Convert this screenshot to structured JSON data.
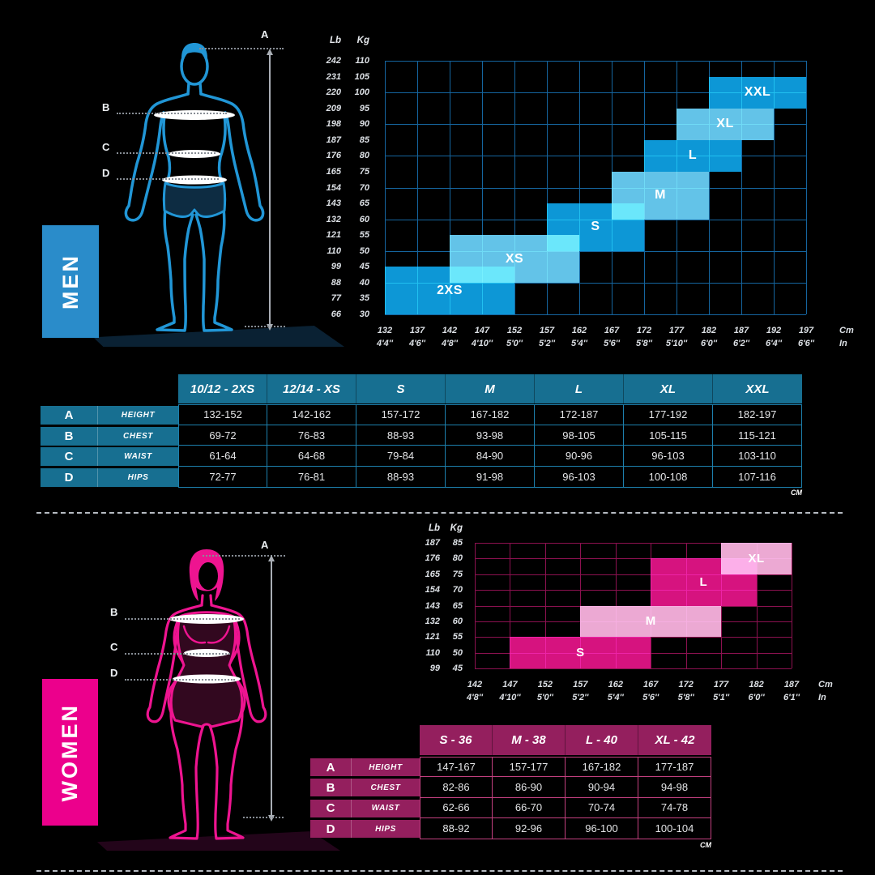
{
  "page": {
    "background": "#000000"
  },
  "men": {
    "banner_label": "MEN",
    "banner_color": "#2a8cca",
    "figure_color": "#2196d6",
    "figure_markers": [
      "A",
      "B",
      "C",
      "D"
    ],
    "table": {
      "columns": [
        "10/12 - 2XS",
        "12/14 - XS",
        "S",
        "M",
        "L",
        "XL",
        "XXL"
      ],
      "rows": [
        {
          "letter": "A",
          "label": "HEIGHT",
          "values": [
            "132-152",
            "142-162",
            "157-172",
            "167-182",
            "172-187",
            "177-192",
            "182-197"
          ]
        },
        {
          "letter": "B",
          "label": "CHEST",
          "values": [
            "69-72",
            "76-83",
            "88-93",
            "93-98",
            "98-105",
            "105-115",
            "115-121"
          ]
        },
        {
          "letter": "C",
          "label": "WAIST",
          "values": [
            "61-64",
            "64-68",
            "79-84",
            "84-90",
            "90-96",
            "96-103",
            "103-110"
          ]
        },
        {
          "letter": "D",
          "label": "HIPS",
          "values": [
            "72-77",
            "76-81",
            "88-93",
            "91-98",
            "96-103",
            "100-108",
            "107-116"
          ]
        }
      ],
      "unit_note": "CM",
      "header_color": "#176f91",
      "line_color": "#1d80ad"
    }
  },
  "women": {
    "banner_label": "WOMEN",
    "banner_color": "#ec008c",
    "figure_color": "#ee1490",
    "figure_markers": [
      "A",
      "B",
      "C",
      "D"
    ],
    "table": {
      "columns": [
        "S - 36",
        "M - 38",
        "L - 40",
        "XL - 42"
      ],
      "rows": [
        {
          "letter": "A",
          "label": "HEIGHT",
          "values": [
            "147-167",
            "157-177",
            "167-182",
            "177-187"
          ]
        },
        {
          "letter": "B",
          "label": "CHEST",
          "values": [
            "82-86",
            "86-90",
            "90-94",
            "94-98"
          ]
        },
        {
          "letter": "C",
          "label": "WAIST",
          "values": [
            "62-66",
            "66-70",
            "70-74",
            "74-78"
          ]
        },
        {
          "letter": "D",
          "label": "HIPS",
          "values": [
            "88-92",
            "92-96",
            "96-100",
            "100-104"
          ]
        }
      ],
      "unit_note": "CM",
      "header_color": "#941f5e",
      "line_color": "#c2407f"
    }
  },
  "chart_data": [
    {
      "id": "men_size_zones",
      "type": "heatmap",
      "title": "Men size zones by height and weight",
      "xlabel": "Cm",
      "xlabel2": "In",
      "ylabel": "Lb",
      "ylabel2": "Kg",
      "xlim": [
        132,
        197
      ],
      "ylim": [
        30,
        110
      ],
      "grid_x_step": 5,
      "grid_y_step": 10,
      "x_ticks_cm": [
        132,
        137,
        142,
        147,
        152,
        157,
        162,
        167,
        172,
        177,
        182,
        187,
        192,
        197
      ],
      "x_ticks_in": [
        "4'4''",
        "4'6''",
        "4'8''",
        "4'10''",
        "5'0''",
        "5'2''",
        "5'4''",
        "5'6''",
        "5'8''",
        "5'10''",
        "6'0''",
        "6'2''",
        "6'4''",
        "6'6''"
      ],
      "y_ticks_kg": [
        110,
        105,
        100,
        95,
        90,
        85,
        80,
        75,
        70,
        65,
        60,
        55,
        50,
        45,
        40,
        35,
        30
      ],
      "y_ticks_lb": [
        242,
        231,
        220,
        209,
        198,
        187,
        176,
        165,
        154,
        143,
        132,
        121,
        110,
        99,
        88,
        77,
        66
      ],
      "zones": [
        {
          "label": "2XS",
          "cm": [
            132,
            152
          ],
          "kg": [
            30,
            45
          ],
          "shade": "dark"
        },
        {
          "label": "XS",
          "cm": [
            142,
            162
          ],
          "kg": [
            40,
            55
          ],
          "shade": "light"
        },
        {
          "label": "S",
          "cm": [
            157,
            172
          ],
          "kg": [
            50,
            65
          ],
          "shade": "dark"
        },
        {
          "label": "M",
          "cm": [
            167,
            182
          ],
          "kg": [
            60,
            75
          ],
          "shade": "light"
        },
        {
          "label": "L",
          "cm": [
            172,
            187
          ],
          "kg": [
            75,
            85
          ],
          "shade": "dark"
        },
        {
          "label": "XL",
          "cm": [
            177,
            192
          ],
          "kg": [
            85,
            95
          ],
          "shade": "light"
        },
        {
          "label": "XXL",
          "cm": [
            182,
            197
          ],
          "kg": [
            95,
            105
          ],
          "shade": "dark"
        }
      ],
      "colors": {
        "dark": "#0d97d6",
        "light": "#63c3e8",
        "grid": "#15659f"
      }
    },
    {
      "id": "women_size_zones",
      "type": "heatmap",
      "title": "Women size zones by height and weight",
      "xlabel": "Cm",
      "xlabel2": "In",
      "ylabel": "Lb",
      "ylabel2": "Kg",
      "xlim": [
        142,
        187
      ],
      "ylim": [
        45,
        85
      ],
      "grid_x_step": 5,
      "grid_y_step": 5,
      "x_ticks_cm": [
        142,
        147,
        152,
        157,
        162,
        167,
        172,
        177,
        182,
        187
      ],
      "x_ticks_in": [
        "4'8''",
        "4'10''",
        "5'0''",
        "5'2''",
        "5'4''",
        "5'6''",
        "5'8''",
        "5'1''",
        "6'0''",
        "6'1''"
      ],
      "y_ticks_kg": [
        85,
        80,
        75,
        70,
        65,
        60,
        55,
        50,
        45
      ],
      "y_ticks_lb": [
        187,
        176,
        165,
        154,
        143,
        132,
        121,
        110,
        99
      ],
      "zones": [
        {
          "label": "S",
          "cm": [
            147,
            167
          ],
          "kg": [
            45,
            55
          ],
          "shade": "dark"
        },
        {
          "label": "M",
          "cm": [
            157,
            177
          ],
          "kg": [
            55,
            65
          ],
          "shade": "light"
        },
        {
          "label": "L",
          "cm": [
            167,
            182
          ],
          "kg": [
            65,
            80
          ],
          "shade": "dark"
        },
        {
          "label": "XL",
          "cm": [
            177,
            187
          ],
          "kg": [
            75,
            85
          ],
          "shade": "light"
        }
      ],
      "colors": {
        "dark": "#d6137f",
        "light": "#eca9d3",
        "grid": "#8c1150"
      }
    }
  ]
}
